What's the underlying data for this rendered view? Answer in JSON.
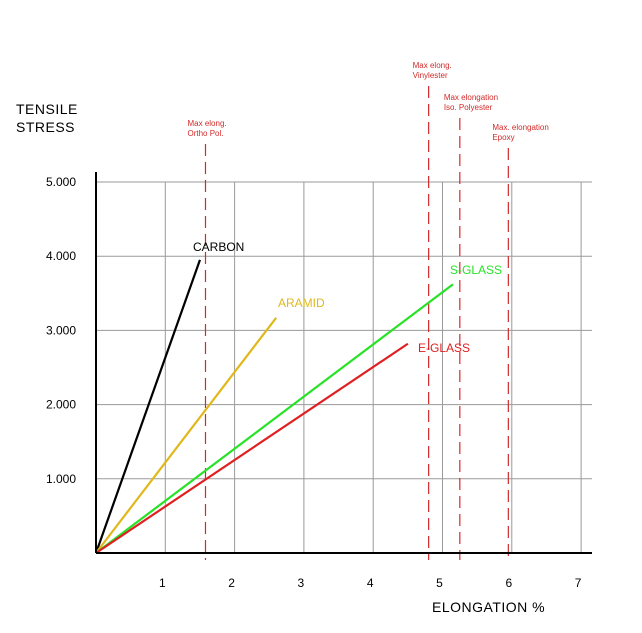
{
  "chart_data": {
    "type": "line",
    "ylabel": [
      "TENSILE",
      "STRESS"
    ],
    "xlabel": "ELONGATION  %",
    "xlim": [
      0,
      7
    ],
    "ylim": [
      0,
      5000
    ],
    "x_ticks": [
      {
        "value": 1,
        "label": "1"
      },
      {
        "value": 2,
        "label": "2"
      },
      {
        "value": 3,
        "label": "3"
      },
      {
        "value": 4,
        "label": "4"
      },
      {
        "value": 5,
        "label": "5"
      },
      {
        "value": 6,
        "label": "6"
      },
      {
        "value": 7,
        "label": "7"
      }
    ],
    "y_ticks": [
      {
        "value": 1000,
        "label": "1.000"
      },
      {
        "value": 2000,
        "label": "2.000"
      },
      {
        "value": 3000,
        "label": "3.000"
      },
      {
        "value": 4000,
        "label": "4.000"
      },
      {
        "value": 5000,
        "label": "5.000"
      }
    ],
    "x_grid": [
      1,
      2,
      3,
      4,
      5,
      6,
      7
    ],
    "grid": true,
    "series": [
      {
        "name": "CARBON",
        "color": "#000000",
        "x": [
          0,
          1.5
        ],
        "y": [
          0,
          3950
        ]
      },
      {
        "name": "ARAMID",
        "color": "#e0b81c",
        "x": [
          0,
          2.6
        ],
        "y": [
          0,
          3170
        ]
      },
      {
        "name": "S-GLASS",
        "color": "#27e227",
        "x": [
          0,
          5.15
        ],
        "y": [
          0,
          3620
        ]
      },
      {
        "name": "E-GLASS",
        "color": "#e02020",
        "x": [
          0,
          4.5
        ],
        "y": [
          0,
          2820
        ]
      }
    ],
    "reference_lines": [
      {
        "x": 1.58,
        "color": "#d22a2a",
        "label": [
          "Max elong.",
          "Ortho Pol."
        ]
      },
      {
        "x": 4.8,
        "color": "#d22a2a",
        "label": [
          "Max elong.",
          "Vinylester"
        ]
      },
      {
        "x": 5.25,
        "color": "#d22a2a",
        "label": [
          "Max elongation",
          "Iso. Polyester"
        ]
      },
      {
        "x": 5.95,
        "color": "#d22a2a",
        "label": [
          "Max. elongation",
          "Epoxy"
        ]
      }
    ]
  }
}
